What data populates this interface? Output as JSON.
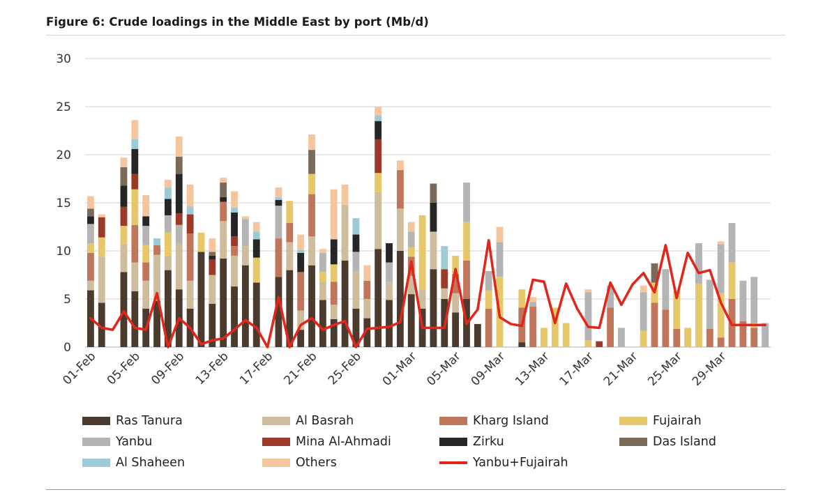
{
  "figure": {
    "title": "Figure 6: Crude loadings in the Middle East by port (Mb/d)"
  },
  "chart_data": {
    "type": "bar",
    "stacked": true,
    "title": "Figure 6: Crude loadings in the Middle East by port (Mb/d)",
    "xlabel": "",
    "ylabel": "",
    "ylim": [
      0,
      30
    ],
    "yticks": [
      0,
      5,
      10,
      15,
      20,
      25,
      30
    ],
    "grid": true,
    "legend_position": "bottom",
    "categories": [
      "01-Feb",
      "02-Feb",
      "03-Feb",
      "04-Feb",
      "05-Feb",
      "06-Feb",
      "07-Feb",
      "08-Feb",
      "09-Feb",
      "10-Feb",
      "11-Feb",
      "12-Feb",
      "13-Feb",
      "14-Feb",
      "15-Feb",
      "16-Feb",
      "17-Feb",
      "18-Feb",
      "19-Feb",
      "20-Feb",
      "21-Feb",
      "22-Feb",
      "23-Feb",
      "24-Feb",
      "25-Feb",
      "26-Feb",
      "27-Feb",
      "28-Feb",
      "29-Feb",
      "01-Mar",
      "02-Mar",
      "03-Mar",
      "04-Mar",
      "05-Mar",
      "06-Mar",
      "07-Mar",
      "08-Mar",
      "09-Mar",
      "10-Mar",
      "11-Mar",
      "12-Mar",
      "13-Mar",
      "14-Mar",
      "15-Mar",
      "16-Mar",
      "17-Mar",
      "18-Mar",
      "19-Mar",
      "20-Mar",
      "21-Mar",
      "22-Mar",
      "23-Mar",
      "24-Mar",
      "25-Mar",
      "26-Mar",
      "27-Mar",
      "28-Mar",
      "29-Mar",
      "30-Mar",
      "31-Mar",
      "01-Apr",
      "02-Apr"
    ],
    "x_tick_labels": [
      "01-Feb",
      "05-Feb",
      "09-Feb",
      "13-Feb",
      "17-Feb",
      "21-Feb",
      "25-Feb",
      "01-Mar",
      "05-Mar",
      "09-Mar",
      "13-Mar",
      "17-Mar",
      "21-Mar",
      "25-Mar",
      "29-Mar"
    ],
    "series": [
      {
        "name": "Ras Tanura",
        "color": "#4a3b2e",
        "values": [
          5.9,
          4.6,
          0,
          7.8,
          5.8,
          4.0,
          4.8,
          8.0,
          6.0,
          4.0,
          9.9,
          4.5,
          9.2,
          6.3,
          8.5,
          6.7,
          0,
          7.3,
          8.0,
          1.8,
          8.5,
          4.9,
          2.9,
          9.0,
          4.0,
          3.0,
          10.2,
          4.9,
          10.0,
          5.5,
          4.0,
          8.1,
          5.0,
          3.6,
          5.0,
          2.4,
          0,
          0,
          0,
          0.5,
          0,
          0,
          0,
          0,
          0,
          0,
          0,
          0,
          0,
          0,
          0,
          0,
          0,
          0,
          0,
          0,
          0,
          0,
          0,
          0,
          0,
          0
        ]
      },
      {
        "name": "Al Basrah",
        "color": "#cdbd9c",
        "values": [
          1.0,
          4.8,
          0,
          2.9,
          3.0,
          2.9,
          4.8,
          1.5,
          4.8,
          2.9,
          0,
          3.0,
          3.9,
          3.2,
          2.0,
          0,
          0,
          0,
          2.9,
          2.0,
          3.0,
          1.9,
          1.5,
          5.8,
          3.9,
          2.0,
          5.9,
          1.9,
          4.4,
          1.9,
          2.0,
          3.9,
          1.1,
          2.0,
          0,
          0,
          0,
          0,
          0,
          0,
          0,
          0,
          0,
          0,
          0,
          0,
          0,
          0,
          0,
          0,
          0,
          0,
          0,
          0,
          0,
          0,
          0,
          0,
          0,
          0,
          0,
          0
        ]
      },
      {
        "name": "Kharg Island",
        "color": "#c0765a",
        "values": [
          2.9,
          0,
          0,
          0,
          3.9,
          1.9,
          1.0,
          0,
          0,
          4.9,
          0,
          0,
          2.0,
          1.0,
          0,
          0,
          0,
          4.0,
          2.0,
          4.0,
          4.4,
          0,
          2.4,
          0,
          0,
          1.9,
          0,
          0,
          4.0,
          2.0,
          0,
          0,
          0,
          2.0,
          4.0,
          0,
          4.0,
          0,
          0,
          3.6,
          4.2,
          0,
          0,
          0,
          0,
          0,
          0,
          4.1,
          0,
          0,
          0,
          4.6,
          3.9,
          1.9,
          0,
          0,
          1.9,
          1.0,
          5.0,
          2.7,
          2.0,
          0
        ]
      },
      {
        "name": "Fujairah",
        "color": "#e6c86b",
        "values": [
          1.0,
          2.0,
          0,
          1.9,
          3.7,
          1.8,
          0,
          2.4,
          0,
          0,
          2.0,
          0,
          0,
          0,
          0,
          2.6,
          0,
          0,
          2.3,
          0,
          2.1,
          1.0,
          1.8,
          0,
          0,
          0,
          2.0,
          0,
          0,
          1.0,
          7.7,
          0,
          0,
          1.9,
          4.0,
          0,
          1.9,
          7.3,
          0,
          1.9,
          0,
          2.0,
          4.1,
          2.5,
          0,
          0.7,
          0,
          0,
          0,
          0,
          1.7,
          2.1,
          0,
          3.9,
          2.0,
          6.6,
          0,
          4.6,
          3.8,
          0,
          0.5,
          0
        ]
      },
      {
        "name": "Yanbu",
        "color": "#b4b4b4",
        "values": [
          2.0,
          0,
          0,
          0,
          0,
          2.0,
          0,
          1.8,
          1.9,
          0,
          0,
          0,
          0,
          0,
          2.8,
          0,
          0,
          3.4,
          0,
          0,
          0,
          2.0,
          0,
          0,
          2.0,
          0,
          0,
          2.0,
          0,
          1.6,
          0,
          0,
          0,
          0,
          4.1,
          0,
          2.0,
          3.6,
          0,
          0,
          0.5,
          0,
          0,
          0,
          0,
          5.0,
          0,
          2.3,
          2.0,
          0,
          4.0,
          0,
          4.2,
          0,
          0,
          4.2,
          5.1,
          5.1,
          4.1,
          4.2,
          4.8,
          2.5
        ]
      },
      {
        "name": "Mina Al-Ahmadi",
        "color": "#9b3a28",
        "values": [
          0,
          2.1,
          0,
          2.0,
          1.6,
          0,
          0,
          0,
          1.2,
          2.0,
          0,
          1.6,
          0,
          1.0,
          0,
          0,
          0,
          0,
          0,
          0,
          0,
          0,
          0,
          0,
          0,
          0,
          3.5,
          0,
          0,
          0,
          0,
          0,
          2.0,
          0,
          0,
          0,
          0,
          0,
          0,
          0,
          0,
          0,
          0,
          0,
          0,
          0,
          0.6,
          0,
          0,
          0,
          0,
          0,
          0,
          0,
          0,
          0,
          0,
          0,
          0,
          0,
          0,
          0
        ]
      },
      {
        "name": "Zirku",
        "color": "#262626",
        "values": [
          0.8,
          0,
          0,
          2.2,
          2.6,
          1.0,
          0,
          1.7,
          4.1,
          0,
          0,
          0.4,
          0.5,
          2.5,
          0,
          1.9,
          0,
          0.6,
          0,
          2.0,
          0,
          0,
          2.6,
          0,
          1.8,
          0,
          1.9,
          2.0,
          0,
          0,
          0,
          3.0,
          0,
          0,
          0,
          0,
          0,
          0,
          0,
          0,
          0,
          0,
          0,
          0,
          0,
          0,
          0,
          0,
          0,
          0,
          0,
          0,
          0,
          0,
          0,
          0,
          0,
          0,
          0,
          0,
          0,
          0
        ]
      },
      {
        "name": "Das Island",
        "color": "#7a6a5a",
        "values": [
          0.8,
          0,
          0,
          1.9,
          0,
          0,
          0,
          0,
          1.8,
          0,
          0,
          0.4,
          1.5,
          0,
          0,
          0,
          0,
          0,
          0,
          0,
          2.5,
          0,
          0,
          0,
          0,
          0,
          0,
          0,
          0,
          0,
          0,
          2.0,
          0,
          0,
          0,
          0,
          0,
          0,
          0,
          0,
          0,
          0,
          0,
          0,
          0,
          0,
          0,
          0,
          0,
          0,
          0,
          2.0,
          0,
          0,
          0,
          0,
          0,
          0,
          0,
          0,
          0,
          0
        ]
      },
      {
        "name": "Al Shaheen",
        "color": "#9ccad6",
        "values": [
          0,
          0,
          0,
          0,
          1.0,
          0,
          0.7,
          1.2,
          0,
          0.8,
          0,
          0,
          0,
          0.5,
          0,
          0.8,
          0,
          0.3,
          0,
          0.3,
          0,
          0,
          0,
          0,
          1.7,
          0,
          0.6,
          0,
          0,
          0,
          0,
          0,
          2.4,
          0,
          0,
          0,
          0,
          0,
          0,
          0,
          0,
          0,
          0,
          0,
          0,
          0,
          0,
          0,
          0,
          0,
          0,
          0,
          0,
          0,
          0,
          0,
          0,
          0,
          0,
          0,
          0,
          0
        ]
      },
      {
        "name": "Others",
        "color": "#f3c6a0",
        "values": [
          1.3,
          0.3,
          0,
          1.0,
          2.0,
          2.2,
          0,
          0.8,
          2.1,
          2.3,
          0,
          1.4,
          0.5,
          1.7,
          0.3,
          1.0,
          0,
          1.0,
          0,
          1.6,
          1.6,
          0.4,
          5.2,
          2.1,
          0,
          1.6,
          0.9,
          0,
          1.0,
          1.0,
          0,
          0,
          0,
          0,
          0,
          0,
          0,
          1.6,
          0,
          0,
          0.5,
          0,
          0,
          0,
          0,
          0.3,
          0,
          0,
          0,
          0,
          0.7,
          0,
          0,
          0,
          0,
          0,
          0,
          0.3,
          0,
          0,
          0,
          0
        ]
      }
    ],
    "line_series": {
      "name": "Yanbu+Fujairah",
      "color": "#e1261c",
      "values": [
        3.0,
        2.0,
        1.8,
        3.7,
        2.0,
        1.8,
        5.6,
        0,
        3.0,
        2.0,
        0.3,
        0.7,
        0.9,
        1.8,
        2.8,
        2.0,
        0,
        5.2,
        0,
        2.3,
        3.0,
        1.8,
        2.3,
        2.7,
        0,
        1.9,
        2.0,
        2.1,
        2.6,
        8.9,
        2.0,
        2.0,
        2.0,
        8.1,
        2.4,
        3.9,
        11.1,
        3.1,
        2.4,
        2.2,
        7.0,
        6.8,
        2.5,
        6.6,
        4.0,
        2.1,
        2.0,
        6.7,
        4.4,
        6.5,
        7.7,
        5.7,
        10.6,
        5.1,
        9.8,
        7.7,
        8.0,
        4.6,
        2.3,
        2.3,
        2.3,
        2.3
      ]
    }
  },
  "legend": {
    "items": [
      "Ras Tanura",
      "Al Basrah",
      "Kharg Island",
      "Fujairah",
      "Yanbu",
      "Mina Al-Ahmadi",
      "Zirku",
      "Das Island",
      "Al Shaheen",
      "Others",
      "Yanbu+Fujairah"
    ]
  }
}
